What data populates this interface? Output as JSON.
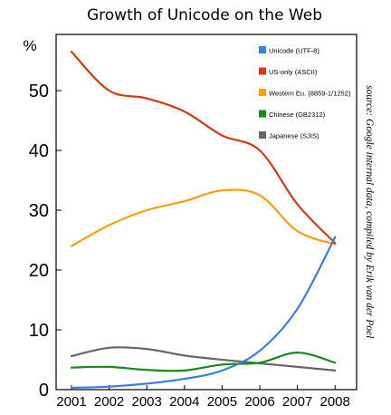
{
  "chart_data": {
    "type": "line",
    "title": "Growth of Unicode on the Web",
    "ylabel": "%",
    "ylim": [
      0,
      57
    ],
    "yticks": [
      0,
      10,
      20,
      30,
      40,
      50
    ],
    "x": [
      2001,
      2002,
      2003,
      2004,
      2005,
      2006,
      2007,
      2008
    ],
    "xlabel": "",
    "grid": false,
    "legend_position": "top-right",
    "source_note": "source: Google internal data, compiled by Erik van der Poel",
    "series": [
      {
        "name": "Unicode (UTF-8)",
        "color": "#3b7de3",
        "values": [
          0.3,
          0.5,
          1.0,
          1.8,
          3.2,
          6.5,
          13.5,
          25.5
        ]
      },
      {
        "name": "US-only (ASCII)",
        "color": "#d33a16",
        "values": [
          56.5,
          50.0,
          48.7,
          46.5,
          42.5,
          40.0,
          31.0,
          24.5
        ]
      },
      {
        "name": "Western Eu. (8859-1/1252)",
        "color": "#f5a00f",
        "values": [
          24.0,
          27.5,
          30.0,
          31.5,
          33.3,
          32.5,
          26.5,
          24.3
        ]
      },
      {
        "name": "Chinese (GB2312)",
        "color": "#178a17",
        "values": [
          3.7,
          3.8,
          3.3,
          3.2,
          4.2,
          4.5,
          6.2,
          4.5
        ]
      },
      {
        "name": "Japanese (SJIS)",
        "color": "#666666",
        "values": [
          5.6,
          7.0,
          6.8,
          5.7,
          5.0,
          4.4,
          3.8,
          3.2
        ]
      }
    ]
  }
}
